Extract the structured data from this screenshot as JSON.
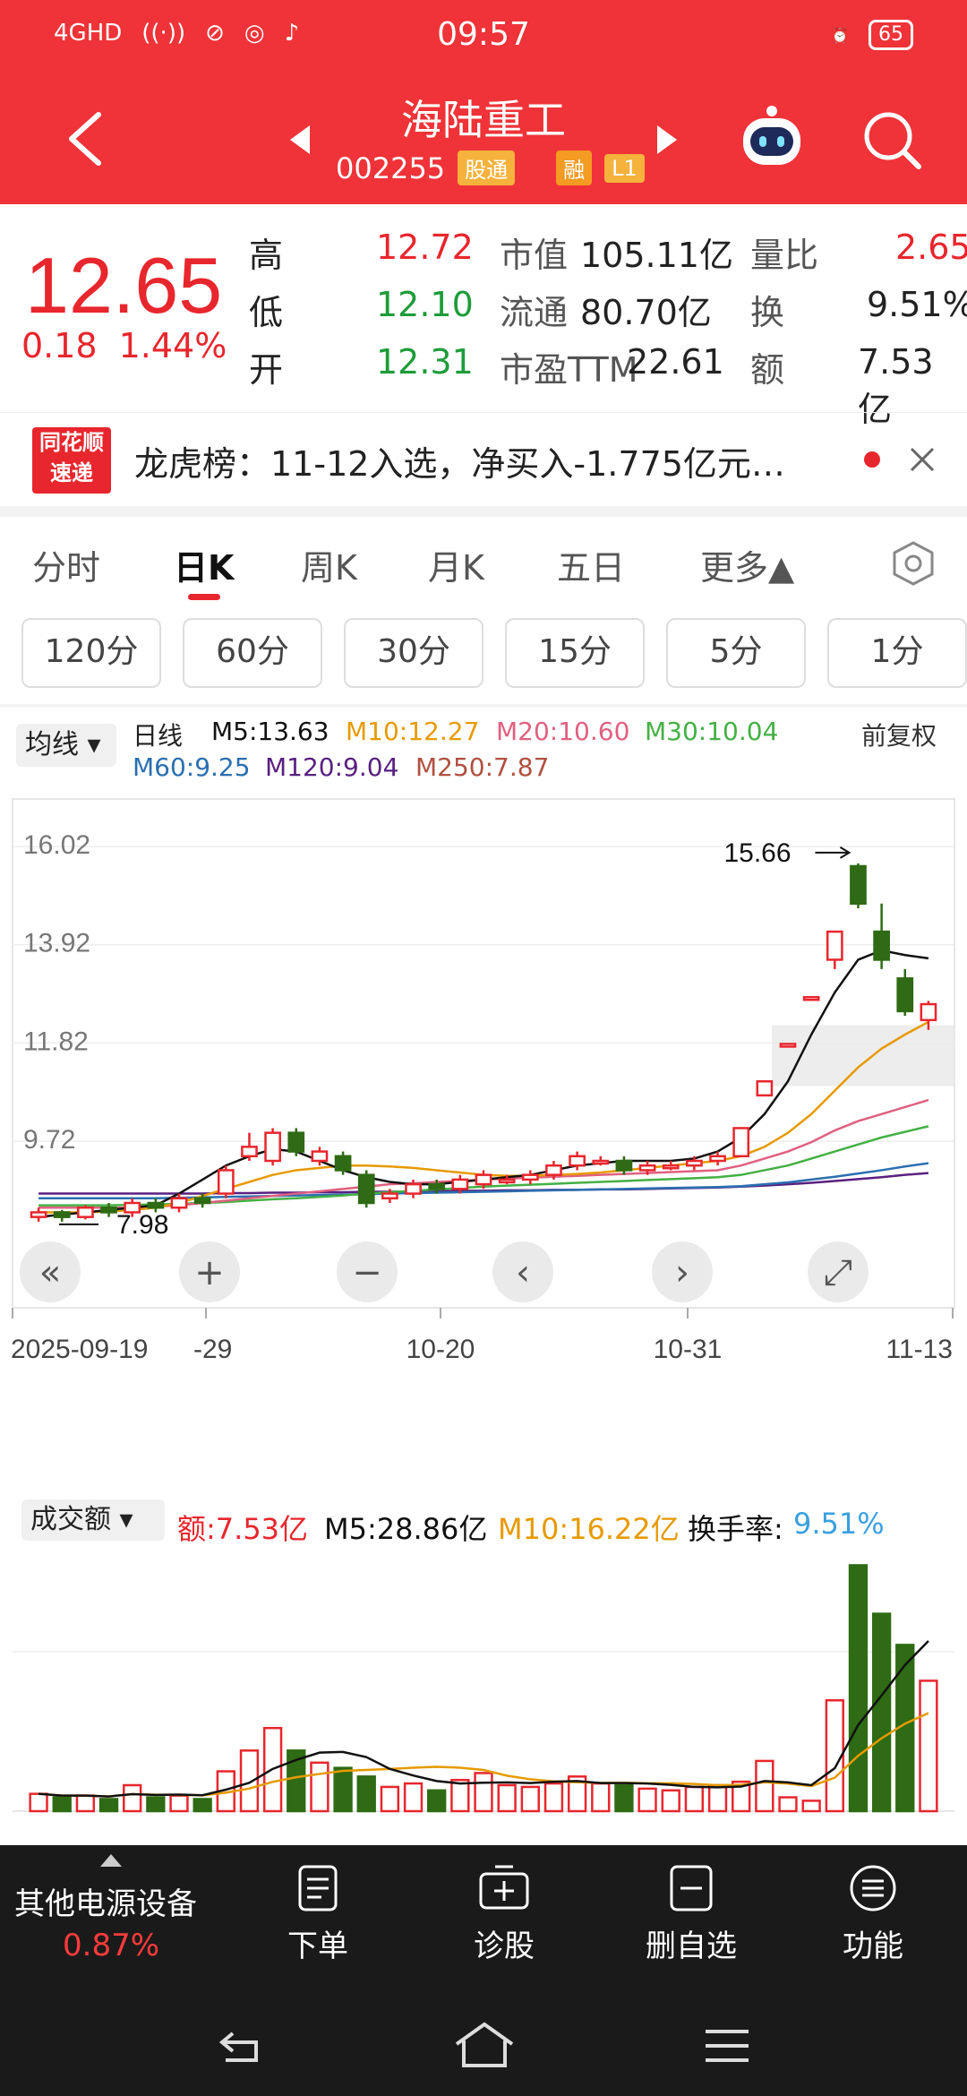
{
  "status": {
    "network": "4GHD",
    "time": "09:57",
    "battery": "65"
  },
  "header": {
    "title": "海陆重工",
    "code": "002255",
    "tags": [
      "股通",
      "融",
      "L1"
    ]
  },
  "quote": {
    "price": "12.65",
    "change": "0.18",
    "change_pct": "1.44%",
    "high_label": "高",
    "high": "12.72",
    "low_label": "低",
    "low": "12.10",
    "open_label": "开",
    "open": "12.31",
    "mcap_label": "市值",
    "mcap": "105.11亿",
    "float_label": "流通",
    "float": "80.70亿",
    "pe_label": "市盈TTM",
    "pe": "22.61",
    "vr_label": "量比",
    "vr": "2.65",
    "turn_label": "换",
    "turn": "9.51%",
    "amt_label": "额",
    "amt": "7.53亿"
  },
  "news": {
    "logo_top": "同花顺",
    "logo_bottom": "速递",
    "text": "龙虎榜：11-12入选，净买入-1.775亿元…"
  },
  "tabs": [
    "分时",
    "日K",
    "周K",
    "月K",
    "五日",
    "更多▲"
  ],
  "minute_buttons": [
    "120分",
    "60分",
    "30分",
    "15分",
    "5分",
    "1分"
  ],
  "ma": {
    "selector": "均线",
    "line": "日线",
    "adjust": "前复权",
    "items": [
      {
        "label": "M5:13.63",
        "color": "#111111"
      },
      {
        "label": "M10:12.27",
        "color": "#e69a00"
      },
      {
        "label": "M20:10.60",
        "color": "#e06080"
      },
      {
        "label": "M30:10.04",
        "color": "#44b044"
      },
      {
        "label": "M60:9.25",
        "color": "#2a6fb0"
      },
      {
        "label": "M120:9.04",
        "color": "#5a2080"
      },
      {
        "label": "M250:7.87",
        "color": "#b05040"
      }
    ]
  },
  "chart_data": {
    "type": "candlestick",
    "y_ticks": [
      "16.02",
      "13.92",
      "11.82",
      "9.72"
    ],
    "ylim": [
      7.5,
      16.5
    ],
    "high_marker": "15.66",
    "low_marker": "7.98",
    "x_labels": [
      "2025-09-19",
      "-29",
      "10-20",
      "10-31",
      "11-13"
    ],
    "candles": [
      {
        "o": 8.1,
        "c": 8.2,
        "h": 8.3,
        "l": 8.0
      },
      {
        "o": 8.2,
        "c": 8.1,
        "h": 8.25,
        "l": 8.0
      },
      {
        "o": 8.1,
        "c": 8.3,
        "h": 8.35,
        "l": 8.05
      },
      {
        "o": 8.3,
        "c": 8.2,
        "h": 8.4,
        "l": 8.1
      },
      {
        "o": 8.2,
        "c": 8.4,
        "h": 8.5,
        "l": 8.1
      },
      {
        "o": 8.4,
        "c": 8.3,
        "h": 8.5,
        "l": 8.2
      },
      {
        "o": 8.3,
        "c": 8.5,
        "h": 8.6,
        "l": 8.2
      },
      {
        "o": 8.5,
        "c": 8.4,
        "h": 8.6,
        "l": 8.3
      },
      {
        "o": 8.6,
        "c": 9.1,
        "h": 9.2,
        "l": 8.5
      },
      {
        "o": 9.4,
        "c": 9.6,
        "h": 9.9,
        "l": 9.3
      },
      {
        "o": 9.3,
        "c": 9.9,
        "h": 10.0,
        "l": 9.2
      },
      {
        "o": 9.9,
        "c": 9.5,
        "h": 10.0,
        "l": 9.4
      },
      {
        "o": 9.3,
        "c": 9.5,
        "h": 9.6,
        "l": 9.2
      },
      {
        "o": 9.4,
        "c": 9.1,
        "h": 9.5,
        "l": 9.0
      },
      {
        "o": 9.0,
        "c": 8.4,
        "h": 9.1,
        "l": 8.3
      },
      {
        "o": 8.5,
        "c": 8.6,
        "h": 8.7,
        "l": 8.4
      },
      {
        "o": 8.6,
        "c": 8.8,
        "h": 8.9,
        "l": 8.5
      },
      {
        "o": 8.8,
        "c": 8.7,
        "h": 8.9,
        "l": 8.6
      },
      {
        "o": 8.7,
        "c": 8.9,
        "h": 9.0,
        "l": 8.6
      },
      {
        "o": 8.8,
        "c": 9.0,
        "h": 9.1,
        "l": 8.7
      },
      {
        "o": 8.9,
        "c": 8.9,
        "h": 9.0,
        "l": 8.8
      },
      {
        "o": 8.9,
        "c": 9.0,
        "h": 9.1,
        "l": 8.8
      },
      {
        "o": 9.0,
        "c": 9.2,
        "h": 9.3,
        "l": 8.9
      },
      {
        "o": 9.2,
        "c": 9.4,
        "h": 9.5,
        "l": 9.1
      },
      {
        "o": 9.3,
        "c": 9.3,
        "h": 9.4,
        "l": 9.2
      },
      {
        "o": 9.3,
        "c": 9.1,
        "h": 9.4,
        "l": 9.0
      },
      {
        "o": 9.1,
        "c": 9.2,
        "h": 9.3,
        "l": 9.0
      },
      {
        "o": 9.2,
        "c": 9.2,
        "h": 9.3,
        "l": 9.1
      },
      {
        "o": 9.2,
        "c": 9.3,
        "h": 9.4,
        "l": 9.1
      },
      {
        "o": 9.3,
        "c": 9.4,
        "h": 9.5,
        "l": 9.2
      },
      {
        "o": 9.4,
        "c": 10.0,
        "h": 10.0,
        "l": 9.4
      },
      {
        "o": 10.7,
        "c": 11.0,
        "h": 11.0,
        "l": 10.7
      },
      {
        "o": 11.8,
        "c": 11.8,
        "h": 11.8,
        "l": 11.8
      },
      {
        "o": 12.8,
        "c": 12.8,
        "h": 12.8,
        "l": 12.8
      },
      {
        "o": 13.6,
        "c": 14.2,
        "h": 14.2,
        "l": 13.4
      },
      {
        "o": 15.6,
        "c": 14.8,
        "h": 15.66,
        "l": 14.7
      },
      {
        "o": 14.2,
        "c": 13.6,
        "h": 14.8,
        "l": 13.4
      },
      {
        "o": 13.2,
        "c": 12.5,
        "h": 13.4,
        "l": 12.4
      },
      {
        "o": 12.31,
        "c": 12.65,
        "h": 12.72,
        "l": 12.1
      }
    ],
    "ma5": [
      8.1,
      8.15,
      8.2,
      8.25,
      8.3,
      8.35,
      8.6,
      8.9,
      9.2,
      9.4,
      9.55,
      9.5,
      9.3,
      9.1,
      8.95,
      8.85,
      8.8,
      8.8,
      8.85,
      8.9,
      8.95,
      9.0,
      9.1,
      9.2,
      9.25,
      9.3,
      9.3,
      9.3,
      9.35,
      9.5,
      9.8,
      10.3,
      11.0,
      12.0,
      12.9,
      13.6,
      13.8,
      13.7,
      13.63
    ],
    "ma10": [
      8.2,
      8.2,
      8.2,
      8.22,
      8.25,
      8.3,
      8.4,
      8.55,
      8.7,
      8.85,
      9.0,
      9.1,
      9.15,
      9.2,
      9.2,
      9.18,
      9.15,
      9.1,
      9.05,
      9.0,
      8.98,
      8.98,
      9.0,
      9.02,
      9.05,
      9.1,
      9.15,
      9.2,
      9.25,
      9.3,
      9.4,
      9.6,
      9.9,
      10.3,
      10.8,
      11.3,
      11.7,
      12.0,
      12.27
    ],
    "ma20": [
      8.3,
      8.3,
      8.3,
      8.3,
      8.3,
      8.32,
      8.35,
      8.4,
      8.45,
      8.5,
      8.55,
      8.6,
      8.65,
      8.7,
      8.75,
      8.8,
      8.82,
      8.85,
      8.87,
      8.9,
      8.92,
      8.94,
      8.96,
      8.98,
      9.0,
      9.02,
      9.04,
      9.06,
      9.08,
      9.1,
      9.2,
      9.35,
      9.5,
      9.7,
      9.95,
      10.15,
      10.3,
      10.45,
      10.6
    ],
    "ma30": [
      8.35,
      8.35,
      8.35,
      8.35,
      8.36,
      8.37,
      8.38,
      8.4,
      8.42,
      8.45,
      8.48,
      8.5,
      8.53,
      8.56,
      8.6,
      8.63,
      8.66,
      8.69,
      8.72,
      8.75,
      8.77,
      8.79,
      8.81,
      8.83,
      8.85,
      8.87,
      8.89,
      8.91,
      8.93,
      8.95,
      9.0,
      9.1,
      9.2,
      9.35,
      9.5,
      9.65,
      9.8,
      9.92,
      10.04
    ],
    "ma60": [
      8.5,
      8.5,
      8.5,
      8.5,
      8.5,
      8.5,
      8.51,
      8.52,
      8.53,
      8.54,
      8.55,
      8.56,
      8.57,
      8.58,
      8.59,
      8.6,
      8.61,
      8.62,
      8.63,
      8.64,
      8.65,
      8.66,
      8.67,
      8.68,
      8.69,
      8.7,
      8.71,
      8.72,
      8.73,
      8.74,
      8.76,
      8.8,
      8.84,
      8.9,
      8.96,
      9.03,
      9.1,
      9.18,
      9.25
    ],
    "ma120": [
      8.6,
      8.6,
      8.6,
      8.6,
      8.6,
      8.6,
      8.6,
      8.6,
      8.61,
      8.61,
      8.62,
      8.62,
      8.63,
      8.63,
      8.64,
      8.64,
      8.65,
      8.65,
      8.66,
      8.66,
      8.67,
      8.67,
      8.68,
      8.68,
      8.69,
      8.69,
      8.7,
      8.71,
      8.72,
      8.73,
      8.75,
      8.77,
      8.8,
      8.83,
      8.87,
      8.91,
      8.95,
      9.0,
      9.04
    ],
    "volume": {
      "label": "成交额",
      "amount": "额:7.53亿",
      "m5": "M5:28.86亿",
      "m10": "M10:16.22亿",
      "turnover_label": "换手率:",
      "turnover": "9.51%",
      "values": [
        1.0,
        0.8,
        0.9,
        0.7,
        1.5,
        0.8,
        0.9,
        0.7,
        2.3,
        3.5,
        4.8,
        3.5,
        2.8,
        2.5,
        2.0,
        1.4,
        1.6,
        1.2,
        1.8,
        2.2,
        1.5,
        1.4,
        1.6,
        2.0,
        1.6,
        1.5,
        1.3,
        1.2,
        1.4,
        1.5,
        1.7,
        2.9,
        0.8,
        0.6,
        6.4,
        14.2,
        11.4,
        9.6,
        7.53
      ]
    }
  },
  "bottom_nav": {
    "sector_name": "其他电源设备",
    "sector_change": "0.87%",
    "items": [
      "下单",
      "诊股",
      "删自选",
      "功能"
    ]
  }
}
